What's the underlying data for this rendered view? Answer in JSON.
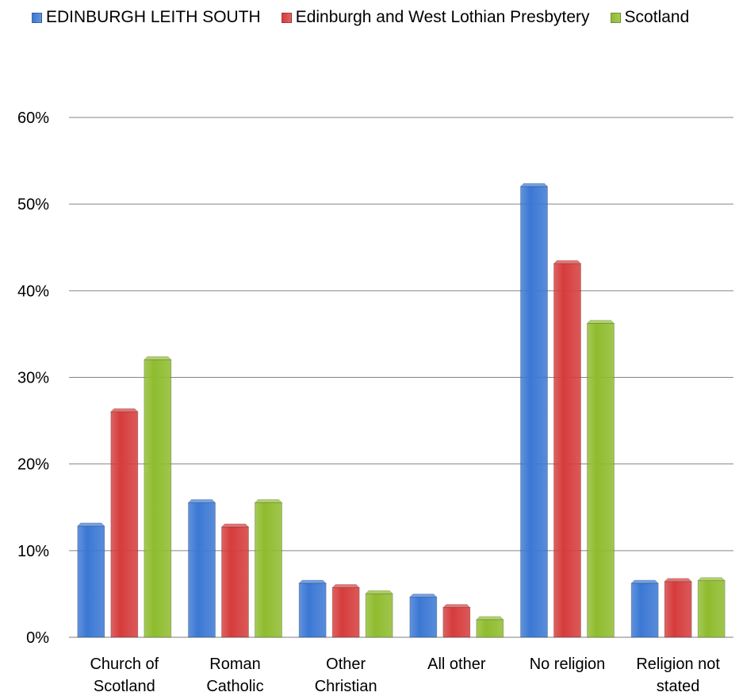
{
  "chart_data": {
    "type": "bar",
    "categories": [
      [
        "Church of",
        "Scotland"
      ],
      [
        "Roman",
        "Catholic"
      ],
      [
        "Other",
        "Christian"
      ],
      [
        "All other"
      ],
      [
        "No religion"
      ],
      [
        "Religion not",
        "stated"
      ]
    ],
    "series": [
      {
        "name": "EDINBURGH LEITH SOUTH",
        "color": "#3b78d4",
        "values": [
          13.2,
          15.9,
          6.6,
          5.0,
          52.4,
          6.6
        ]
      },
      {
        "name": "Edinburgh and West Lothian Presbytery",
        "color": "#d63c3c",
        "values": [
          26.4,
          13.1,
          6.1,
          3.8,
          43.5,
          6.8
        ]
      },
      {
        "name": "Scotland",
        "color": "#8fbc2e",
        "values": [
          32.4,
          15.9,
          5.4,
          2.4,
          36.6,
          6.9
        ]
      }
    ],
    "ylim": [
      0,
      60
    ],
    "yticks": [
      "0%",
      "10%",
      "20%",
      "30%",
      "40%",
      "50%",
      "60%"
    ],
    "grid": true,
    "legend_position": "top"
  }
}
